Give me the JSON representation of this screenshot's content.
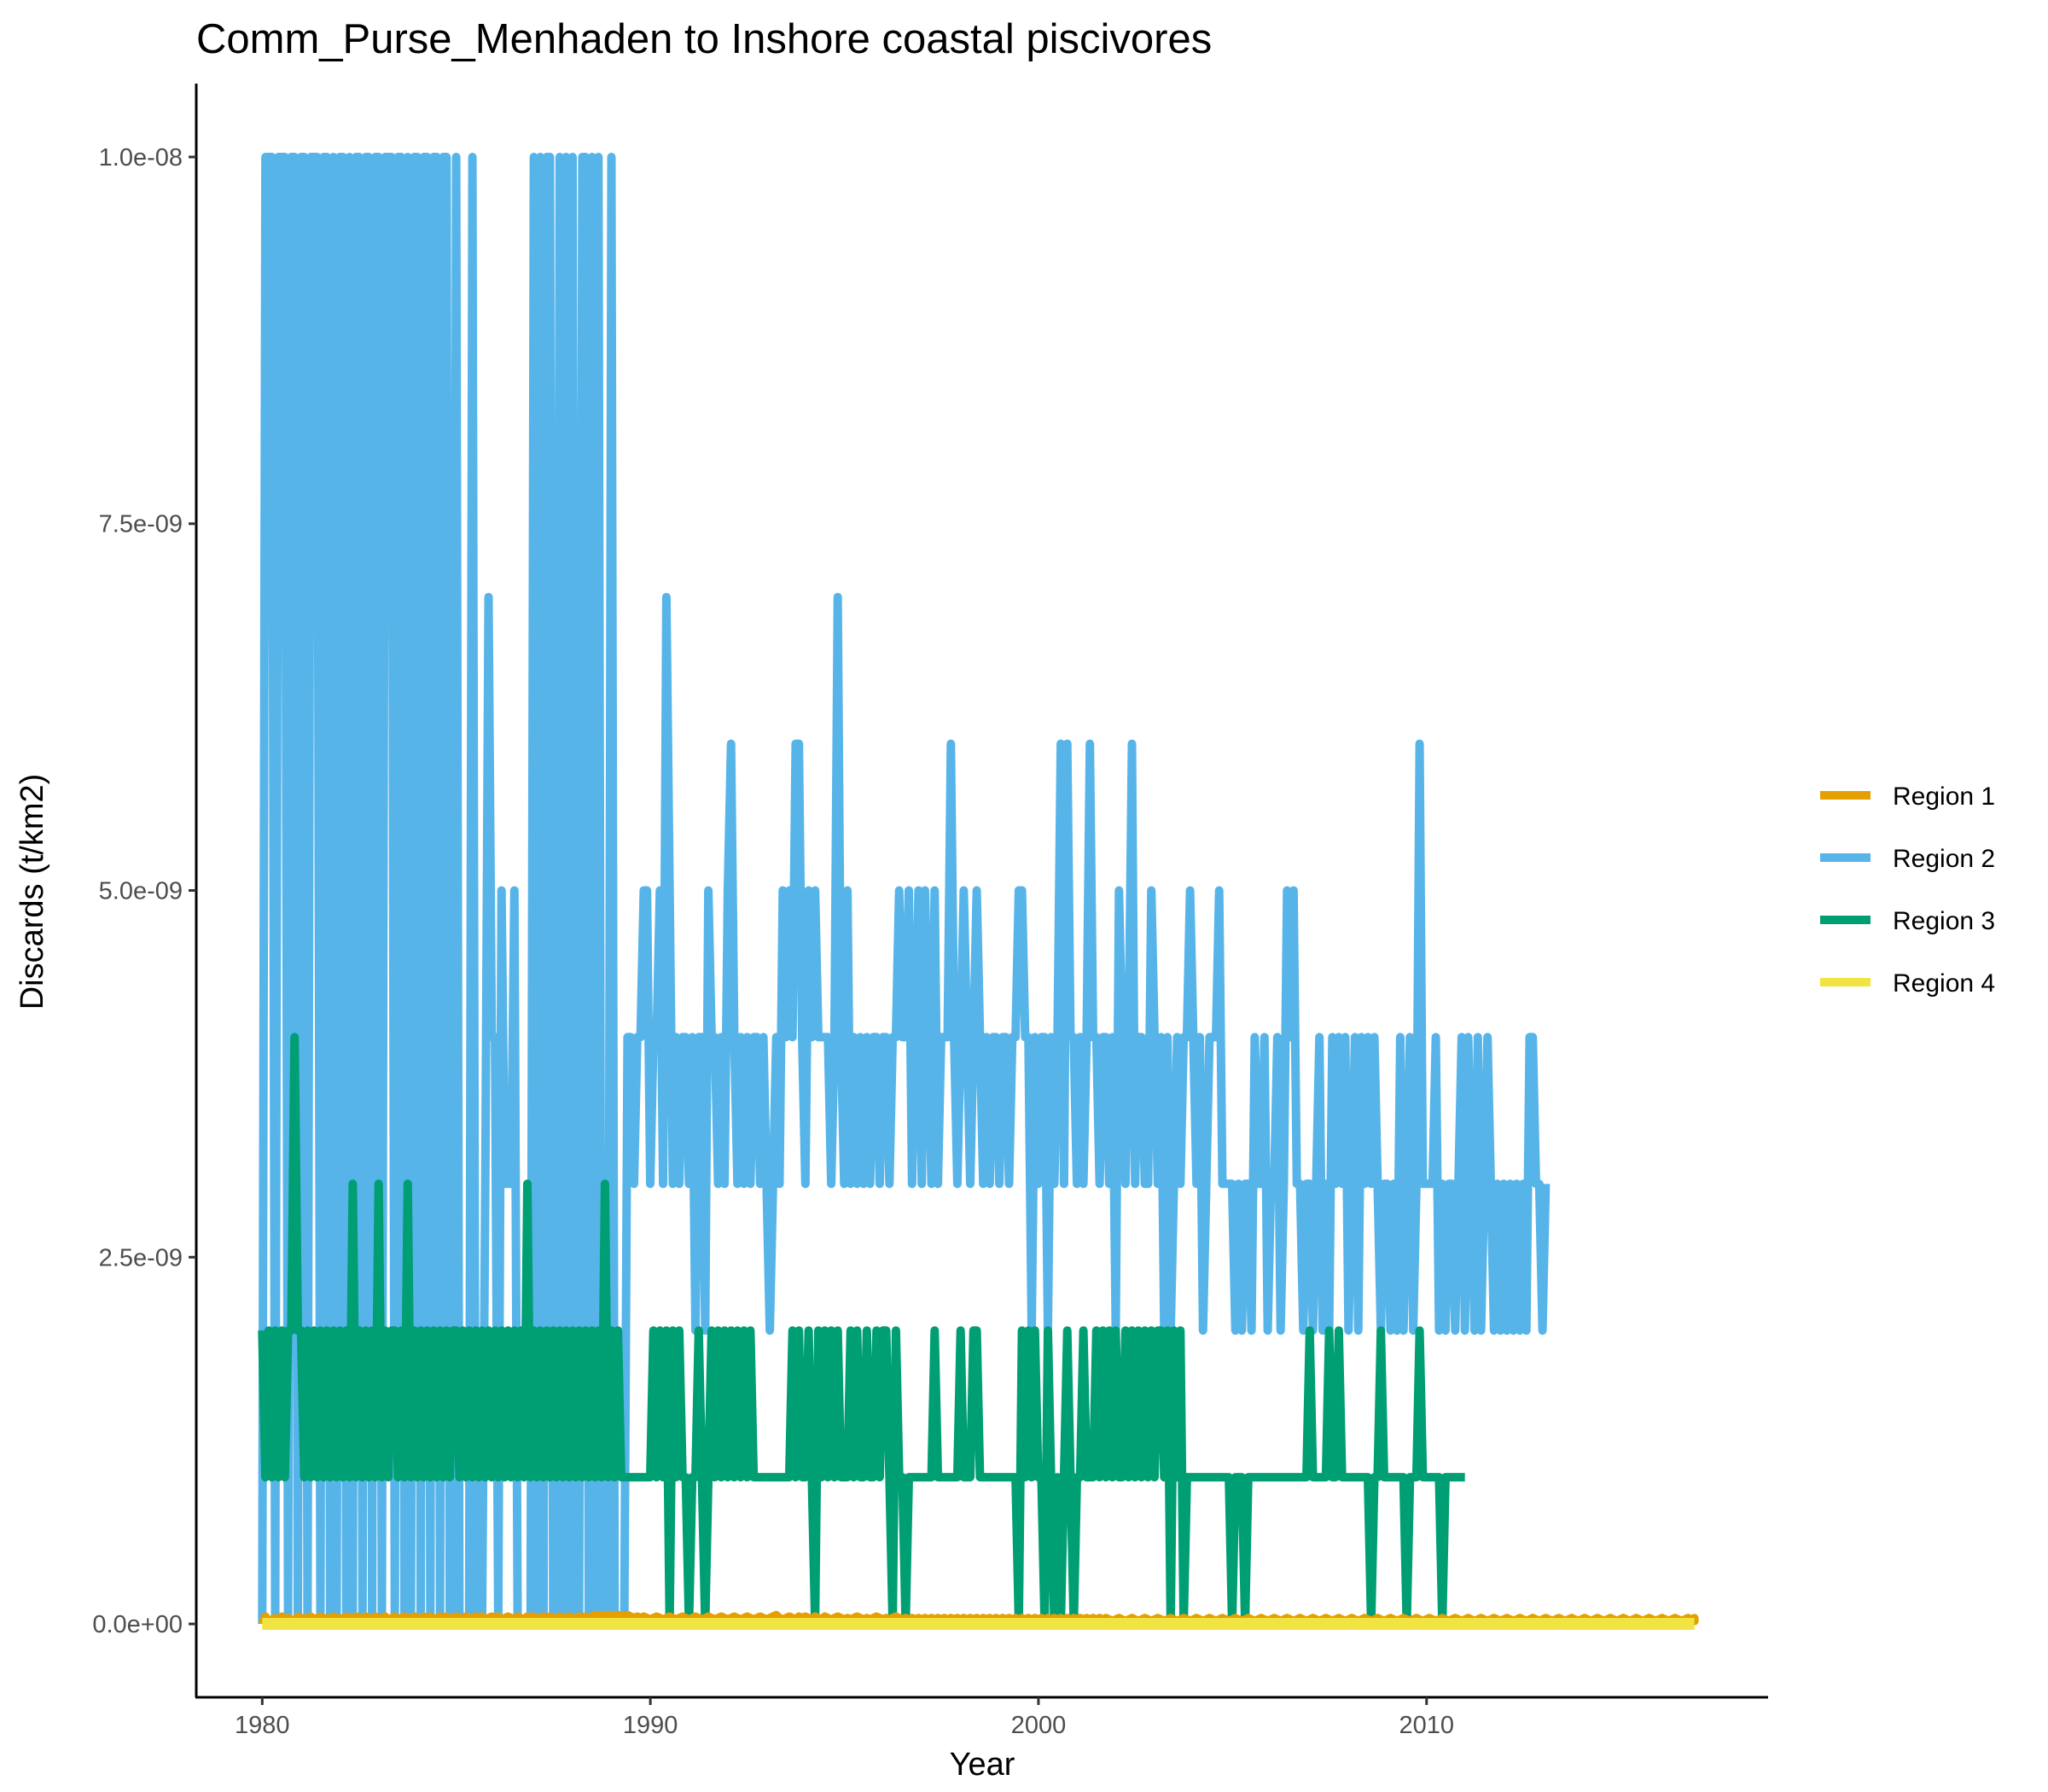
{
  "chart_data": {
    "type": "line",
    "title": "Comm_Purse_Menhaden to Inshore coastal piscivores",
    "xlabel": "Year",
    "ylabel": "Discards (t/km2)",
    "xlim": [
      1978.3,
      2018.8
    ],
    "ylim": [
      -5e-10,
      1.05e-08
    ],
    "x_ticks": [
      {
        "value": 1980,
        "label": "1980"
      },
      {
        "value": 1990,
        "label": "1990"
      },
      {
        "value": 2000,
        "label": "2000"
      },
      {
        "value": 2010,
        "label": "2010"
      }
    ],
    "y_ticks": [
      {
        "value": 0,
        "label": "0.0e+00"
      },
      {
        "value": 2.5e-09,
        "label": "2.5e-09"
      },
      {
        "value": 5e-09,
        "label": "5.0e-09"
      },
      {
        "value": 7.5e-09,
        "label": "7.5e-09"
      },
      {
        "value": 1e-08,
        "label": "1.0e-08"
      }
    ],
    "grid": false,
    "legend_position": "right",
    "x_start": 1980.0,
    "x_step_years": 0.0833,
    "series": [
      {
        "name": "Region 1",
        "color": "#E69F00",
        "values_e9": [
          0,
          0.05,
          0,
          0.03,
          0.04,
          0,
          0.05,
          0.02,
          0.04,
          0.03,
          0,
          0.05,
          0.03,
          0.04,
          0.02,
          0.05,
          0.03,
          0.04,
          0.05,
          0.02,
          0.04,
          0.03,
          0.05,
          0.03,
          0.04,
          0.02,
          0.05,
          0.04,
          0.03,
          0.05,
          0.04,
          0.03,
          0.05,
          0.04,
          0.02,
          0.05,
          0.03,
          0.04,
          0.05,
          0.03,
          0.04,
          0.05,
          0.03,
          0.04,
          0.05,
          0.04,
          0.03,
          0.05,
          0.04,
          0.03,
          0.05,
          0.04,
          0.05,
          0.03,
          0.04,
          0.05,
          0.04,
          0.05,
          0.03,
          0.04,
          0.05,
          0.04,
          0.03,
          0.05,
          0.04,
          0.03,
          0.05,
          0.04,
          0.05,
          0.03,
          0.04,
          0.05,
          0.04,
          0.05,
          0.03,
          0.04,
          0.05,
          0.04,
          0.03,
          0.05,
          0.04,
          0.03,
          0.05,
          0.04,
          0.05,
          0.03,
          0.04,
          0.05,
          0.04,
          0.05,
          0.03,
          0.04,
          0.05,
          0.04,
          0.03,
          0.05,
          0.04,
          0.03,
          0.05,
          0.04,
          0.05,
          0.04,
          0.05,
          0.06,
          0.05,
          0.06,
          0.05,
          0.06,
          0.05,
          0.06,
          0.05,
          0.06,
          0.05,
          0.06,
          0.05,
          0.04,
          0.05,
          0.04,
          0.05,
          0.04,
          0.03,
          0.04,
          0.05,
          0.04,
          0.03,
          0.04,
          0.05,
          0.04,
          0.03,
          0.04,
          0.05,
          0.04,
          0.03,
          0.04,
          0.05,
          0.04,
          0.03,
          0.04,
          0.05,
          0.04,
          0.03,
          0.04,
          0.05,
          0.04,
          0.03,
          0.04,
          0.05,
          0.04,
          0.03,
          0.04,
          0.05,
          0.04,
          0.03,
          0.04,
          0.05,
          0.04,
          0.03,
          0.04,
          0.05,
          0.06,
          0.04,
          0.03,
          0.04,
          0.05,
          0.04,
          0.03,
          0.05,
          0.04,
          0.05,
          0.04,
          0.03,
          0.05,
          0.04,
          0.03,
          0.05,
          0.04,
          0.03,
          0.04,
          0.05,
          0.04,
          0.03,
          0.04,
          0.03,
          0.04,
          0.05,
          0.04,
          0.03,
          0.04,
          0.03,
          0.04,
          0.05,
          0.04,
          0.03,
          0.04,
          0.03,
          0.04,
          0.05,
          0.04,
          0.03,
          0.04,
          0.03,
          0.04,
          0.03,
          0.04,
          0.03,
          0.04,
          0.03,
          0.04,
          0.03,
          0.04,
          0.03,
          0.04,
          0.03,
          0.04,
          0.03,
          0.04,
          0.03,
          0.04,
          0.03,
          0.04,
          0.03,
          0.04,
          0.03,
          0.04,
          0.03,
          0.04,
          0.03,
          0.04,
          0.03,
          0.04,
          0.03,
          0.04,
          0.03,
          0.04,
          0.03,
          0.04,
          0.03,
          0.04,
          0.03,
          0.04,
          0.03,
          0.04,
          0.03,
          0.04,
          0.03,
          0.04,
          0.03,
          0.04,
          0.03,
          0.04,
          0.03,
          0.04,
          0.03,
          0.04,
          0.03,
          0.04,
          0.03,
          0.04,
          0.03,
          0.04,
          0.03,
          0.04,
          0.03,
          0.02,
          0.03,
          0.04,
          0.03,
          0.02,
          0.03,
          0.04,
          0.03,
          0.02,
          0.03,
          0.04,
          0.03,
          0.02,
          0.03,
          0.04,
          0.03,
          0.02,
          0.03,
          0.04,
          0.03,
          0.02,
          0.03,
          0.04,
          0.03,
          0.02,
          0.03,
          0.04,
          0.03,
          0.02,
          0.03,
          0.04,
          0.03,
          0.02,
          0.03,
          0.04,
          0.03,
          0.02,
          0.03,
          0.04,
          0.03,
          0.02,
          0.03,
          0.04,
          0.03,
          0.02,
          0.03,
          0.04,
          0.03,
          0.02,
          0.03,
          0.04,
          0.03,
          0.02,
          0.03,
          0.04,
          0.03,
          0.02,
          0.03,
          0.04,
          0.03,
          0.02,
          0.03,
          0.04,
          0.03,
          0.02,
          0.03,
          0.04,
          0.03,
          0.02,
          0.03,
          0.04,
          0.03,
          0.02,
          0.03,
          0.04,
          0.03,
          0.02,
          0.03,
          0.04,
          0.03,
          0.02,
          0.03,
          0.04,
          0.03,
          0.02,
          0.03,
          0.04,
          0.03,
          0.02,
          0.03,
          0.04,
          0.03,
          0.02,
          0.03,
          0.04,
          0.03,
          0.02,
          0.03,
          0.04,
          0.03,
          0.02,
          0.03,
          0.04,
          0.03,
          0.02,
          0.03,
          0.04,
          0.03,
          0.02,
          0.03,
          0.04,
          0.03,
          0.02,
          0.03,
          0.04,
          0.03,
          0.02,
          0.03,
          0.04,
          0.03,
          0.02,
          0.03,
          0.04,
          0.03,
          0.02,
          0.03,
          0.04,
          0.03,
          0.02,
          0.03,
          0.04,
          0.03,
          0.02,
          0.03,
          0.04,
          0.03,
          0.02,
          0.03,
          0.04,
          0.03,
          0.02,
          0.03,
          0.04,
          0.03,
          0.02,
          0.03,
          0.04,
          0.03,
          0.02,
          0.03,
          0.04,
          0.03,
          0.02,
          0.03,
          0.04,
          0.03,
          0.02,
          0.03,
          0.04,
          0.03,
          0.02,
          0.03,
          0.04,
          0.03,
          0.02,
          0.03,
          0.04,
          0.03,
          0.02,
          0.03,
          0.04,
          0.03,
          0.02,
          0.03,
          0.04,
          0.03,
          0.02,
          0.03,
          0.04,
          0.03,
          0.02,
          0.03,
          0.04,
          0.03,
          0.02,
          0.03,
          0.04,
          0.03,
          0.02,
          0.03,
          0.04,
          0.03,
          0.02,
          0.03,
          0.04,
          0.03,
          0.02,
          0.03,
          0.04,
          0.03,
          0.02
        ]
      },
      {
        "name": "Region 2",
        "color": "#56B4E9",
        "values_e9": [
          0,
          10,
          10,
          10,
          0,
          10,
          10,
          10,
          0,
          10,
          10,
          0,
          10,
          10,
          0,
          10,
          10,
          10,
          0,
          10,
          10,
          0,
          10,
          0,
          10,
          10,
          0,
          10,
          0,
          10,
          10,
          0,
          10,
          10,
          0,
          10,
          10,
          0,
          10,
          10,
          10,
          0,
          10,
          10,
          0,
          10,
          0,
          10,
          10,
          0,
          10,
          10,
          0,
          10,
          10,
          0,
          10,
          10,
          0,
          0,
          10,
          0,
          0,
          0,
          0,
          10,
          0,
          0,
          0,
          3,
          7,
          4,
          4,
          0,
          5,
          3,
          3,
          3,
          5,
          0,
          0,
          0,
          0,
          0,
          10,
          0,
          10,
          0,
          10,
          10,
          0,
          0,
          10,
          0,
          10,
          0,
          10,
          0,
          0,
          10,
          10,
          0,
          10,
          0,
          10,
          0,
          0,
          0,
          10,
          0,
          0,
          0,
          0,
          4,
          4,
          3,
          4,
          4,
          5,
          5,
          3,
          4,
          4,
          5,
          3,
          7,
          5,
          3,
          4,
          3,
          4,
          4,
          3,
          4,
          2,
          4,
          4,
          2,
          5,
          4,
          4,
          3,
          4,
          3,
          5,
          6,
          4,
          3,
          4,
          3,
          4,
          3,
          4,
          4,
          3,
          4,
          3,
          2,
          3,
          4,
          3,
          5,
          4,
          5,
          4,
          6,
          6,
          4,
          3,
          5,
          4,
          5,
          4,
          4,
          4,
          4,
          3,
          4,
          7,
          4,
          3,
          5,
          3,
          4,
          3,
          4,
          3,
          4,
          3,
          4,
          4,
          3,
          4,
          4,
          3,
          4,
          4,
          5,
          4,
          4,
          5,
          3,
          4,
          5,
          3,
          5,
          4,
          3,
          5,
          3,
          4,
          4,
          4,
          6,
          4,
          3,
          4,
          5,
          4,
          3,
          4,
          5,
          4,
          3,
          4,
          3,
          4,
          4,
          3,
          4,
          4,
          3,
          4,
          4,
          5,
          5,
          4,
          4,
          2,
          4,
          3,
          4,
          4,
          2,
          4,
          3,
          4,
          6,
          3,
          6,
          4,
          4,
          3,
          4,
          3,
          4,
          6,
          4,
          4,
          3,
          4,
          4,
          3,
          4,
          2,
          5,
          4,
          3,
          4,
          6,
          3,
          4,
          4,
          3,
          3,
          5,
          4,
          3,
          4,
          2,
          4,
          2,
          3,
          4,
          3,
          4,
          4,
          5,
          4,
          3,
          4,
          2,
          3,
          4,
          4,
          4,
          5,
          3,
          3,
          3,
          3,
          2,
          3,
          2,
          3,
          3,
          2,
          4,
          3,
          3,
          4,
          2,
          3,
          3,
          4,
          2,
          3,
          5,
          4,
          5,
          3,
          3,
          2,
          3,
          3,
          2,
          3,
          4,
          2,
          3,
          2,
          4,
          3,
          4,
          3,
          4,
          2,
          3,
          4,
          2,
          4,
          3,
          4,
          3,
          4,
          3,
          2,
          3,
          3,
          2,
          3,
          2,
          4,
          2,
          3,
          4,
          2,
          3,
          6,
          3,
          3,
          3,
          3,
          4,
          2,
          3,
          2,
          3,
          3,
          2,
          3,
          4,
          2,
          4,
          3,
          2,
          4,
          2,
          3,
          4,
          3,
          2,
          3,
          2,
          3,
          2,
          3,
          2,
          3,
          2,
          3,
          2,
          4,
          4,
          3,
          3,
          2,
          3
        ]
      },
      {
        "name": "Region 3",
        "color": "#009E73",
        "values_e9": [
          2,
          1,
          2,
          1,
          2,
          1,
          2,
          1,
          2,
          2,
          4,
          2,
          2,
          1,
          2,
          1,
          2,
          1,
          2,
          1,
          2,
          1,
          2,
          1,
          2,
          1,
          2,
          1,
          3,
          1,
          2,
          1,
          2,
          1,
          2,
          1,
          3,
          1,
          2,
          1,
          2,
          2,
          1,
          2,
          1,
          3,
          1,
          2,
          1,
          2,
          1,
          2,
          1,
          2,
          1,
          2,
          1,
          2,
          1,
          2,
          2,
          1,
          2,
          1,
          2,
          1,
          2,
          1,
          2,
          1,
          2,
          1,
          2,
          1,
          2,
          1,
          2,
          1,
          2,
          1,
          2,
          1,
          3,
          1,
          2,
          1,
          2,
          1,
          2,
          1,
          2,
          1,
          2,
          1,
          2,
          1,
          2,
          1,
          2,
          1,
          2,
          1,
          2,
          1,
          2,
          1,
          3,
          1,
          2,
          1,
          2,
          1,
          1,
          1,
          1,
          1,
          1,
          1,
          1,
          1,
          1,
          2,
          1,
          2,
          1,
          2,
          0,
          2,
          1,
          2,
          1,
          1,
          0,
          1,
          1,
          2,
          1,
          0,
          1,
          2,
          1,
          2,
          1,
          2,
          1,
          2,
          1,
          2,
          1,
          2,
          1,
          2,
          1,
          1,
          1,
          1,
          1,
          1,
          1,
          1,
          1,
          1,
          1,
          1,
          2,
          1,
          2,
          1,
          1,
          2,
          1,
          0,
          2,
          1,
          2,
          1,
          2,
          1,
          2,
          1,
          1,
          1,
          2,
          1,
          2,
          1,
          1,
          2,
          1,
          1,
          2,
          1,
          2,
          2,
          1,
          0,
          2,
          1,
          1,
          0,
          1,
          1,
          1,
          1,
          1,
          1,
          1,
          1,
          2,
          1,
          1,
          1,
          1,
          1,
          1,
          1,
          2,
          1,
          1,
          1,
          2,
          2,
          1,
          1,
          1,
          1,
          1,
          1,
          1,
          1,
          1,
          1,
          1,
          1,
          0,
          2,
          1,
          2,
          1,
          2,
          1,
          1,
          0,
          2,
          1,
          0,
          1,
          0,
          1,
          2,
          1,
          0,
          1,
          1,
          2,
          1,
          1,
          1,
          2,
          1,
          2,
          1,
          2,
          1,
          2,
          1,
          1,
          2,
          1,
          2,
          1,
          2,
          1,
          2,
          1,
          2,
          1,
          2,
          2,
          1,
          2,
          0,
          2,
          1,
          2,
          0,
          1,
          1,
          1,
          1,
          1,
          1,
          1,
          1,
          1,
          1,
          1,
          1,
          1,
          1,
          0,
          1,
          1,
          1,
          0,
          1,
          1,
          1,
          1,
          1,
          1,
          1,
          1,
          1,
          1,
          1,
          1,
          1,
          1,
          1,
          1,
          1,
          1,
          1,
          2,
          1,
          1,
          1,
          1,
          1,
          2,
          1,
          1,
          2,
          1,
          1,
          1,
          1,
          1,
          1,
          1,
          1,
          1,
          0,
          1,
          1,
          2,
          1,
          1,
          1,
          1,
          1,
          1,
          1,
          0,
          1,
          1,
          1,
          2,
          1,
          1,
          1,
          1,
          1,
          1,
          0,
          1,
          1,
          1,
          1,
          1,
          1,
          1
        ]
      },
      {
        "name": "Region 4",
        "color": "#F0E442",
        "values_e9": [
          0,
          0
        ]
      }
    ]
  }
}
